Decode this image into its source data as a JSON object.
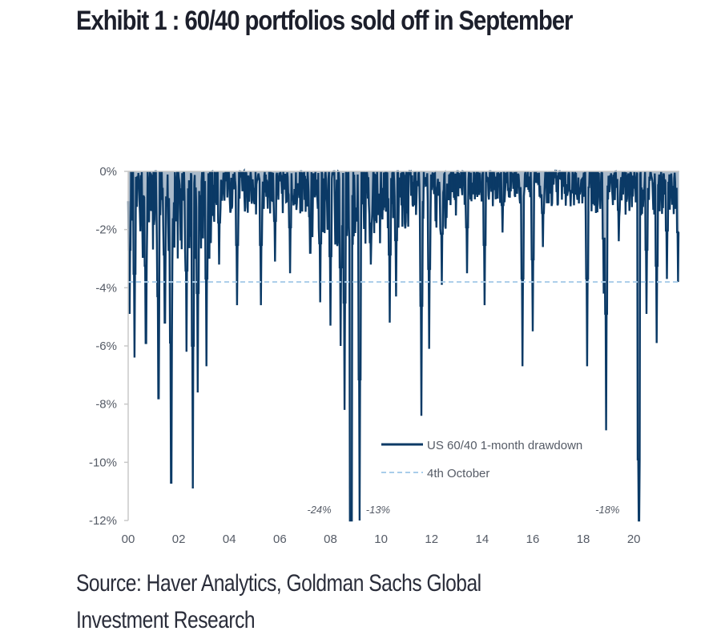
{
  "title": "Exhibit 1 : 60/40 portfolios sold off in September",
  "source": "Source: Haver Analytics, Goldman Sachs Global Investment Research",
  "colors": {
    "series": "#0b3a66",
    "reference": "#a9cdea",
    "axis": "#c8c8c8",
    "text": "#555b66"
  },
  "chart_data": {
    "type": "line",
    "title": "Exhibit 1 : 60/40 portfolios sold off in September",
    "xlabel": "",
    "ylabel": "",
    "xlim": [
      2000,
      2021.8
    ],
    "ylim": [
      -12,
      0
    ],
    "x_ticks": [
      "00",
      "02",
      "04",
      "06",
      "08",
      "10",
      "12",
      "14",
      "16",
      "18",
      "20"
    ],
    "x_tick_values": [
      2000,
      2002,
      2004,
      2006,
      2008,
      2010,
      2012,
      2014,
      2016,
      2018,
      2020
    ],
    "y_ticks": [
      "0%",
      "-2%",
      "-4%",
      "-6%",
      "-8%",
      "-10%",
      "-12%"
    ],
    "y_tick_values": [
      0,
      -2,
      -4,
      -6,
      -8,
      -10,
      -12
    ],
    "grid": false,
    "legend_position": "bottom-right",
    "series": [
      {
        "name": "US 60/40 1-month drawdown",
        "style": "solid",
        "spikes": [
          [
            2000.05,
            -4.9
          ],
          [
            2000.25,
            -6.4
          ],
          [
            2000.7,
            -5.9
          ],
          [
            2001.2,
            -7.8
          ],
          [
            2001.45,
            -5.2
          ],
          [
            2001.7,
            -10.7
          ],
          [
            2002.3,
            -6.2
          ],
          [
            2002.55,
            -10.9
          ],
          [
            2002.75,
            -7.6
          ],
          [
            2003.1,
            -6.7
          ],
          [
            2003.6,
            -3.2
          ],
          [
            2004.3,
            -4.6
          ],
          [
            2005.25,
            -4.6
          ],
          [
            2005.8,
            -3.1
          ],
          [
            2006.4,
            -3.5
          ],
          [
            2007.2,
            -2.8
          ],
          [
            2007.6,
            -4.5
          ],
          [
            2008.0,
            -5.3
          ],
          [
            2008.4,
            -6.0
          ],
          [
            2008.55,
            -8.2
          ],
          [
            2008.8,
            -24.0
          ],
          [
            2009.15,
            -13.0
          ],
          [
            2009.6,
            -3.2
          ],
          [
            2010.35,
            -5.2
          ],
          [
            2010.6,
            -4.3
          ],
          [
            2011.6,
            -8.4
          ],
          [
            2011.9,
            -6.1
          ],
          [
            2012.4,
            -3.9
          ],
          [
            2013.4,
            -3.5
          ],
          [
            2014.1,
            -4.6
          ],
          [
            2014.8,
            -2.1
          ],
          [
            2015.6,
            -6.7
          ],
          [
            2016.0,
            -5.5
          ],
          [
            2016.4,
            -2.6
          ],
          [
            2017.5,
            -1.2
          ],
          [
            2018.15,
            -6.7
          ],
          [
            2018.8,
            -4.2
          ],
          [
            2018.9,
            -8.9
          ],
          [
            2019.4,
            -2.4
          ],
          [
            2020.2,
            -18.0
          ],
          [
            2020.5,
            -4.9
          ],
          [
            2020.9,
            -5.9
          ],
          [
            2021.3,
            -3.7
          ],
          [
            2021.75,
            -3.8
          ]
        ]
      },
      {
        "name": "4th October",
        "style": "dashed",
        "value": -3.8
      }
    ],
    "annotations": [
      {
        "text": "-24%",
        "x": 2008.8,
        "note": "off-scale value"
      },
      {
        "text": "-13%",
        "x": 2009.15,
        "note": "off-scale value"
      },
      {
        "text": "-18%",
        "x": 2020.2,
        "note": "off-scale value"
      }
    ]
  },
  "legend": {
    "items": [
      {
        "label": "US 60/40 1-month drawdown"
      },
      {
        "label": "4th October"
      }
    ]
  }
}
